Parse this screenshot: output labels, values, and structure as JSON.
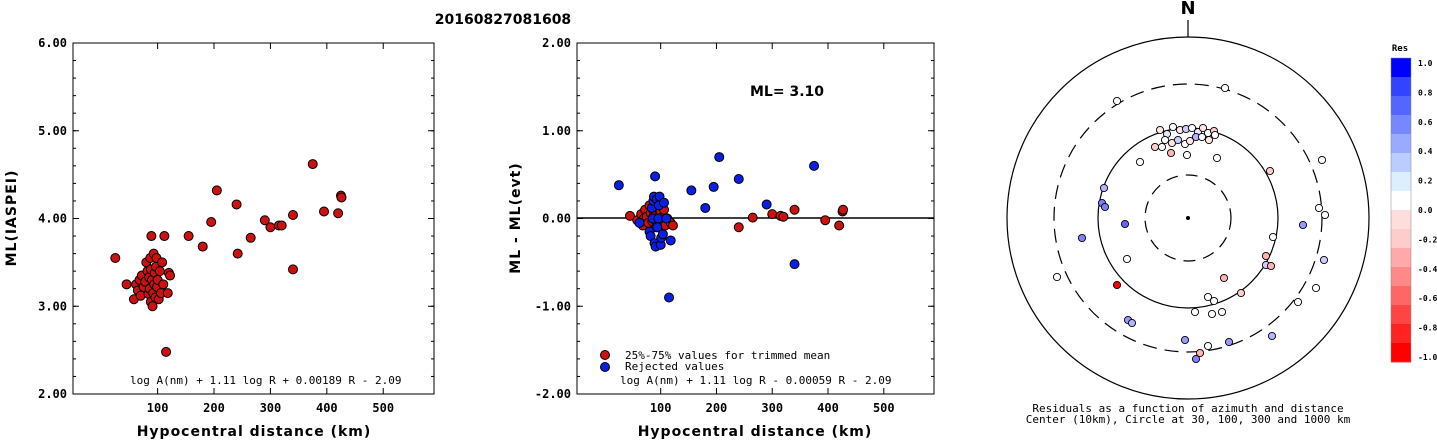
{
  "title": "20160827081608",
  "chart_data": [
    {
      "type": "scatter",
      "xlabel": "Hypocentral distance (km)",
      "ylabel": "ML(IASPEI)",
      "xlim": [
        -50,
        590
      ],
      "ylim": [
        2.0,
        6.0
      ],
      "x_ticks": [
        "100",
        "200",
        "300",
        "400",
        "500"
      ],
      "y_ticks": [
        "2.00",
        "3.00",
        "4.00",
        "5.00",
        "6.00"
      ],
      "formula": "log A(nm) + 1.11 log R + 0.00189 R - 2.09",
      "color": "#cc1111",
      "points": [
        [
          25,
          3.55
        ],
        [
          45,
          3.25
        ],
        [
          58,
          3.08
        ],
        [
          62,
          3.25
        ],
        [
          65,
          3.18
        ],
        [
          68,
          3.3
        ],
        [
          70,
          3.12
        ],
        [
          72,
          3.35
        ],
        [
          75,
          3.22
        ],
        [
          78,
          3.28
        ],
        [
          80,
          3.5
        ],
        [
          82,
          3.4
        ],
        [
          84,
          3.14
        ],
        [
          85,
          3.33
        ],
        [
          86,
          3.2
        ],
        [
          87,
          3.55
        ],
        [
          88,
          3.05
        ],
        [
          88,
          3.42
        ],
        [
          89,
          3.8
        ],
        [
          90,
          3.3
        ],
        [
          91,
          3.0
        ],
        [
          92,
          3.15
        ],
        [
          93,
          3.6
        ],
        [
          94,
          3.25
        ],
        [
          95,
          3.38
        ],
        [
          96,
          3.1
        ],
        [
          97,
          3.45
        ],
        [
          98,
          3.55
        ],
        [
          99,
          3.22
        ],
        [
          100,
          3.3
        ],
        [
          102,
          3.08
        ],
        [
          104,
          3.4
        ],
        [
          106,
          3.15
        ],
        [
          108,
          3.5
        ],
        [
          110,
          3.25
        ],
        [
          112,
          3.8
        ],
        [
          115,
          2.48
        ],
        [
          118,
          3.15
        ],
        [
          120,
          3.38
        ],
        [
          122,
          3.35
        ],
        [
          155,
          3.8
        ],
        [
          180,
          3.68
        ],
        [
          195,
          3.96
        ],
        [
          205,
          4.32
        ],
        [
          240,
          4.16
        ],
        [
          242,
          3.6
        ],
        [
          265,
          3.78
        ],
        [
          290,
          3.98
        ],
        [
          300,
          3.9
        ],
        [
          315,
          3.92
        ],
        [
          320,
          3.92
        ],
        [
          340,
          4.04
        ],
        [
          340,
          3.42
        ],
        [
          375,
          4.62
        ],
        [
          395,
          4.08
        ],
        [
          420,
          4.06
        ],
        [
          425,
          4.26
        ],
        [
          426,
          4.24
        ]
      ]
    },
    {
      "type": "scatter",
      "xlabel": "Hypocentral distance (km)",
      "ylabel": "ML - ML(evt)",
      "xlim": [
        -50,
        590
      ],
      "ylim": [
        -2.0,
        2.0
      ],
      "x_ticks": [
        "100",
        "200",
        "300",
        "400",
        "500"
      ],
      "y_ticks": [
        "-2.00",
        "-1.00",
        "0.00",
        "1.00",
        "2.00"
      ],
      "annotation": "ML= 3.10",
      "formula": "log A(nm) + 1.11 log R - 0.00059 R - 2.09",
      "legend": {
        "position": "bottom-left",
        "entries": [
          "25%-75% values for trimmed mean",
          "Rejected values"
        ]
      },
      "series": [
        {
          "name": "25%-75% values for trimmed mean",
          "color": "#cc1111",
          "points": [
            [
              45,
              0.03
            ],
            [
              58,
              -0.02
            ],
            [
              65,
              0.05
            ],
            [
              68,
              -0.08
            ],
            [
              70,
              0.0
            ],
            [
              72,
              0.1
            ],
            [
              75,
              0.02
            ],
            [
              78,
              -0.05
            ],
            [
              80,
              0.15
            ],
            [
              82,
              0.06
            ],
            [
              85,
              -0.03
            ],
            [
              86,
              0.01
            ],
            [
              88,
              0.08
            ],
            [
              90,
              -0.02
            ],
            [
              91,
              0.04
            ],
            [
              92,
              -0.1
            ],
            [
              94,
              0.0
            ],
            [
              95,
              0.12
            ],
            [
              96,
              -0.06
            ],
            [
              98,
              0.05
            ],
            [
              99,
              0.0
            ],
            [
              100,
              0.08
            ],
            [
              102,
              -0.04
            ],
            [
              104,
              0.02
            ],
            [
              106,
              0.1
            ],
            [
              108,
              -0.08
            ],
            [
              112,
              0.0
            ],
            [
              118,
              -0.05
            ],
            [
              122,
              -0.08
            ],
            [
              240,
              -0.1
            ],
            [
              265,
              0.01
            ],
            [
              300,
              0.05
            ],
            [
              315,
              0.03
            ],
            [
              320,
              0.02
            ],
            [
              340,
              0.1
            ],
            [
              395,
              -0.02
            ],
            [
              420,
              -0.08
            ],
            [
              426,
              0.08
            ],
            [
              427,
              0.1
            ]
          ]
        },
        {
          "name": "Rejected values",
          "color": "#0a1ee6",
          "points": [
            [
              25,
              0.38
            ],
            [
              62,
              -0.05
            ],
            [
              80,
              -0.15
            ],
            [
              82,
              -0.2
            ],
            [
              84,
              0.12
            ],
            [
              86,
              0.0
            ],
            [
              87,
              0.2
            ],
            [
              88,
              0.25
            ],
            [
              89,
              -0.28
            ],
            [
              90,
              0.48
            ],
            [
              91,
              -0.32
            ],
            [
              93,
              0.22
            ],
            [
              94,
              -0.1
            ],
            [
              96,
              0.0
            ],
            [
              97,
              0.15
            ],
            [
              98,
              0.25
            ],
            [
              100,
              -0.3
            ],
            [
              101,
              -0.22
            ],
            [
              104,
              -0.18
            ],
            [
              106,
              0.18
            ],
            [
              110,
              0.0
            ],
            [
              115,
              -0.9
            ],
            [
              118,
              -0.25
            ],
            [
              155,
              0.32
            ],
            [
              180,
              0.12
            ],
            [
              195,
              0.36
            ],
            [
              205,
              0.7
            ],
            [
              240,
              0.45
            ],
            [
              290,
              0.16
            ],
            [
              340,
              -0.52
            ],
            [
              375,
              0.6
            ]
          ]
        }
      ]
    },
    {
      "type": "polar-scatter",
      "north_label": "N",
      "caption1": "Residuals as a function of azimuth and distance",
      "caption2": "Center (10km), Circle at 30, 100, 300 and 1000 km",
      "colorbar": {
        "title": "Res",
        "ticks": [
          "1.0",
          "0.8",
          "0.6",
          "0.4",
          "0.2",
          "0.0",
          "-0.2",
          "-0.4",
          "-0.6",
          "-0.8",
          "-1.0"
        ],
        "colors": [
          "#0000ff",
          "#3344ff",
          "#5566ff",
          "#7788ff",
          "#99aaff",
          "#bbccff",
          "#ddeeff",
          "#ffffff",
          "#ffdddd",
          "#ffcccc",
          "#ffaaaa",
          "#ff8888",
          "#ff6666",
          "#ff4444",
          "#ff2222",
          "#ff0000"
        ]
      },
      "points": [
        [
          1117,
          101,
          0.0
        ],
        [
          1225,
          88,
          0.0
        ],
        [
          1160,
          130,
          -0.1
        ],
        [
          1167,
          134,
          0.1
        ],
        [
          1173,
          127,
          0.0
        ],
        [
          1180,
          130,
          -0.1
        ],
        [
          1186,
          129,
          0.2
        ],
        [
          1192,
          128,
          0.0
        ],
        [
          1198,
          132,
          0.1
        ],
        [
          1203,
          128,
          -0.1
        ],
        [
          1208,
          133,
          0.0
        ],
        [
          1214,
          131,
          -0.2
        ],
        [
          1165,
          140,
          0.0
        ],
        [
          1172,
          143,
          -0.1
        ],
        [
          1178,
          140,
          0.2
        ],
        [
          1185,
          144,
          0.0
        ],
        [
          1190,
          141,
          -0.1
        ],
        [
          1196,
          137,
          0.3
        ],
        [
          1202,
          137,
          0.0
        ],
        [
          1209,
          140,
          -0.1
        ],
        [
          1215,
          135,
          0.0
        ],
        [
          1155,
          147,
          -0.2
        ],
        [
          1162,
          147,
          0.0
        ],
        [
          1171,
          153,
          -0.3
        ],
        [
          1187,
          155,
          0.0
        ],
        [
          1140,
          162,
          0.0
        ],
        [
          1217,
          158,
          0.0
        ],
        [
          1270,
          171,
          -0.2
        ],
        [
          1322,
          160,
          0.0
        ],
        [
          1104,
          188,
          0.3
        ],
        [
          1102,
          203,
          0.5
        ],
        [
          1105,
          207,
          0.5
        ],
        [
          1125,
          224,
          0.6
        ],
        [
          1319,
          208,
          0.0
        ],
        [
          1325,
          215,
          0.0
        ],
        [
          1303,
          225,
          0.4
        ],
        [
          1082,
          238,
          0.5
        ],
        [
          1273,
          237,
          0.0
        ],
        [
          1127,
          259,
          0.0
        ],
        [
          1266,
          256,
          -0.3
        ],
        [
          1266,
          265,
          0.2
        ],
        [
          1271,
          266,
          -0.3
        ],
        [
          1324,
          260,
          0.2
        ],
        [
          1316,
          288,
          0.0
        ],
        [
          1057,
          277,
          0.0
        ],
        [
          1117,
          285,
          -1.0
        ],
        [
          1224,
          278,
          -0.3
        ],
        [
          1241,
          293,
          -0.2
        ],
        [
          1208,
          297,
          0.0
        ],
        [
          1214,
          301,
          0.0
        ],
        [
          1298,
          302,
          0.0
        ],
        [
          1212,
          314,
          0.0
        ],
        [
          1222,
          312,
          0.0
        ],
        [
          1128,
          320,
          0.4
        ],
        [
          1132,
          323,
          0.3
        ],
        [
          1195,
          312,
          0.0
        ],
        [
          1185,
          340,
          0.4
        ],
        [
          1272,
          336,
          0.3
        ],
        [
          1229,
          342,
          0.4
        ],
        [
          1208,
          346,
          0.0
        ],
        [
          1196,
          359,
          0.5
        ],
        [
          1200,
          353,
          -0.3
        ]
      ]
    }
  ]
}
